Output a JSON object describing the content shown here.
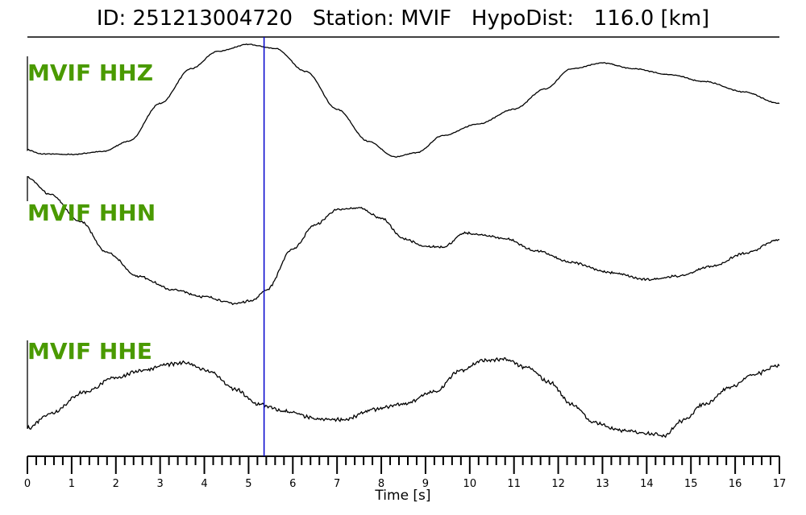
{
  "header": {
    "title": "ID: 251213004720   Station: MVIF   HypoDist:   116.0 [km]"
  },
  "chart_data": {
    "type": "line",
    "xlabel": "Time [s]",
    "xlim": [
      0,
      17
    ],
    "x_ticks_major": [
      0,
      1,
      2,
      3,
      4,
      5,
      6,
      7,
      8,
      9,
      10,
      11,
      12,
      13,
      14,
      15,
      16,
      17
    ],
    "x_tick_minor_step": 0.2,
    "pick_marker": {
      "x": 5.35,
      "color": "#0000cc"
    },
    "trace_color": "#000000",
    "label_color": "#4a9a00",
    "series": [
      {
        "name": "MVIF HHZ",
        "points": [
          [
            0,
            -0.85
          ],
          [
            0.3,
            -0.92
          ],
          [
            1.0,
            -0.93
          ],
          [
            1.7,
            -0.88
          ],
          [
            2.3,
            -0.7
          ],
          [
            3.0,
            -0.05
          ],
          [
            3.7,
            0.55
          ],
          [
            4.3,
            0.85
          ],
          [
            5.0,
            0.97
          ],
          [
            5.6,
            0.9
          ],
          [
            6.3,
            0.5
          ],
          [
            7.0,
            -0.15
          ],
          [
            7.7,
            -0.7
          ],
          [
            8.3,
            -0.97
          ],
          [
            8.8,
            -0.9
          ],
          [
            9.4,
            -0.6
          ],
          [
            10.2,
            -0.4
          ],
          [
            11.0,
            -0.15
          ],
          [
            11.7,
            0.2
          ],
          [
            12.3,
            0.55
          ],
          [
            13.0,
            0.65
          ],
          [
            13.7,
            0.55
          ],
          [
            14.5,
            0.45
          ],
          [
            15.3,
            0.33
          ],
          [
            16.2,
            0.15
          ],
          [
            17.0,
            -0.05
          ]
        ]
      },
      {
        "name": "MVIF HHN",
        "points": [
          [
            0,
            1.0
          ],
          [
            0.5,
            0.75
          ],
          [
            1.2,
            0.35
          ],
          [
            1.8,
            -0.1
          ],
          [
            2.5,
            -0.45
          ],
          [
            3.3,
            -0.65
          ],
          [
            4.0,
            -0.75
          ],
          [
            4.7,
            -0.85
          ],
          [
            5.1,
            -0.8
          ],
          [
            5.4,
            -0.65
          ],
          [
            6.0,
            -0.05
          ],
          [
            6.5,
            0.3
          ],
          [
            7.0,
            0.52
          ],
          [
            7.5,
            0.55
          ],
          [
            8.0,
            0.4
          ],
          [
            8.5,
            0.1
          ],
          [
            9.0,
            -0.02
          ],
          [
            9.4,
            -0.02
          ],
          [
            9.9,
            0.18
          ],
          [
            10.3,
            0.15
          ],
          [
            10.8,
            0.1
          ],
          [
            11.5,
            -0.08
          ],
          [
            12.3,
            -0.25
          ],
          [
            13.2,
            -0.4
          ],
          [
            14.0,
            -0.5
          ],
          [
            14.7,
            -0.45
          ],
          [
            15.5,
            -0.3
          ],
          [
            16.2,
            -0.12
          ],
          [
            17.0,
            0.08
          ]
        ]
      },
      {
        "name": "MVIF HHE",
        "points": [
          [
            0,
            -0.9
          ],
          [
            0.5,
            -0.6
          ],
          [
            1.3,
            -0.15
          ],
          [
            2.0,
            0.15
          ],
          [
            2.6,
            0.3
          ],
          [
            3.2,
            0.42
          ],
          [
            3.6,
            0.45
          ],
          [
            4.1,
            0.28
          ],
          [
            4.7,
            -0.1
          ],
          [
            5.2,
            -0.4
          ],
          [
            5.8,
            -0.55
          ],
          [
            6.6,
            -0.72
          ],
          [
            7.2,
            -0.72
          ],
          [
            7.8,
            -0.52
          ],
          [
            8.5,
            -0.4
          ],
          [
            9.2,
            -0.15
          ],
          [
            9.8,
            0.3
          ],
          [
            10.3,
            0.5
          ],
          [
            10.8,
            0.52
          ],
          [
            11.3,
            0.35
          ],
          [
            11.8,
            0.05
          ],
          [
            12.3,
            -0.4
          ],
          [
            12.8,
            -0.78
          ],
          [
            13.4,
            -0.95
          ],
          [
            14.0,
            -1.0
          ],
          [
            14.4,
            -1.05
          ],
          [
            14.8,
            -0.75
          ],
          [
            15.3,
            -0.4
          ],
          [
            15.9,
            -0.05
          ],
          [
            16.4,
            0.2
          ],
          [
            17.0,
            0.4
          ]
        ]
      }
    ]
  }
}
